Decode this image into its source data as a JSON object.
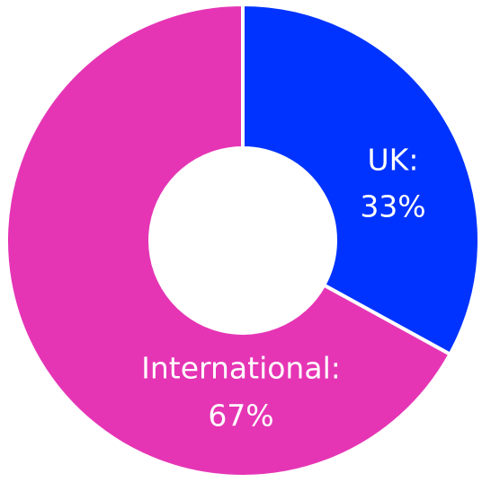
{
  "chart_data": {
    "type": "donut",
    "categories": [
      "UK:",
      "International:"
    ],
    "values": [
      33,
      67
    ],
    "value_labels": [
      "33%",
      "67%"
    ],
    "colors": [
      "#0033ff",
      "#e535b5"
    ]
  }
}
